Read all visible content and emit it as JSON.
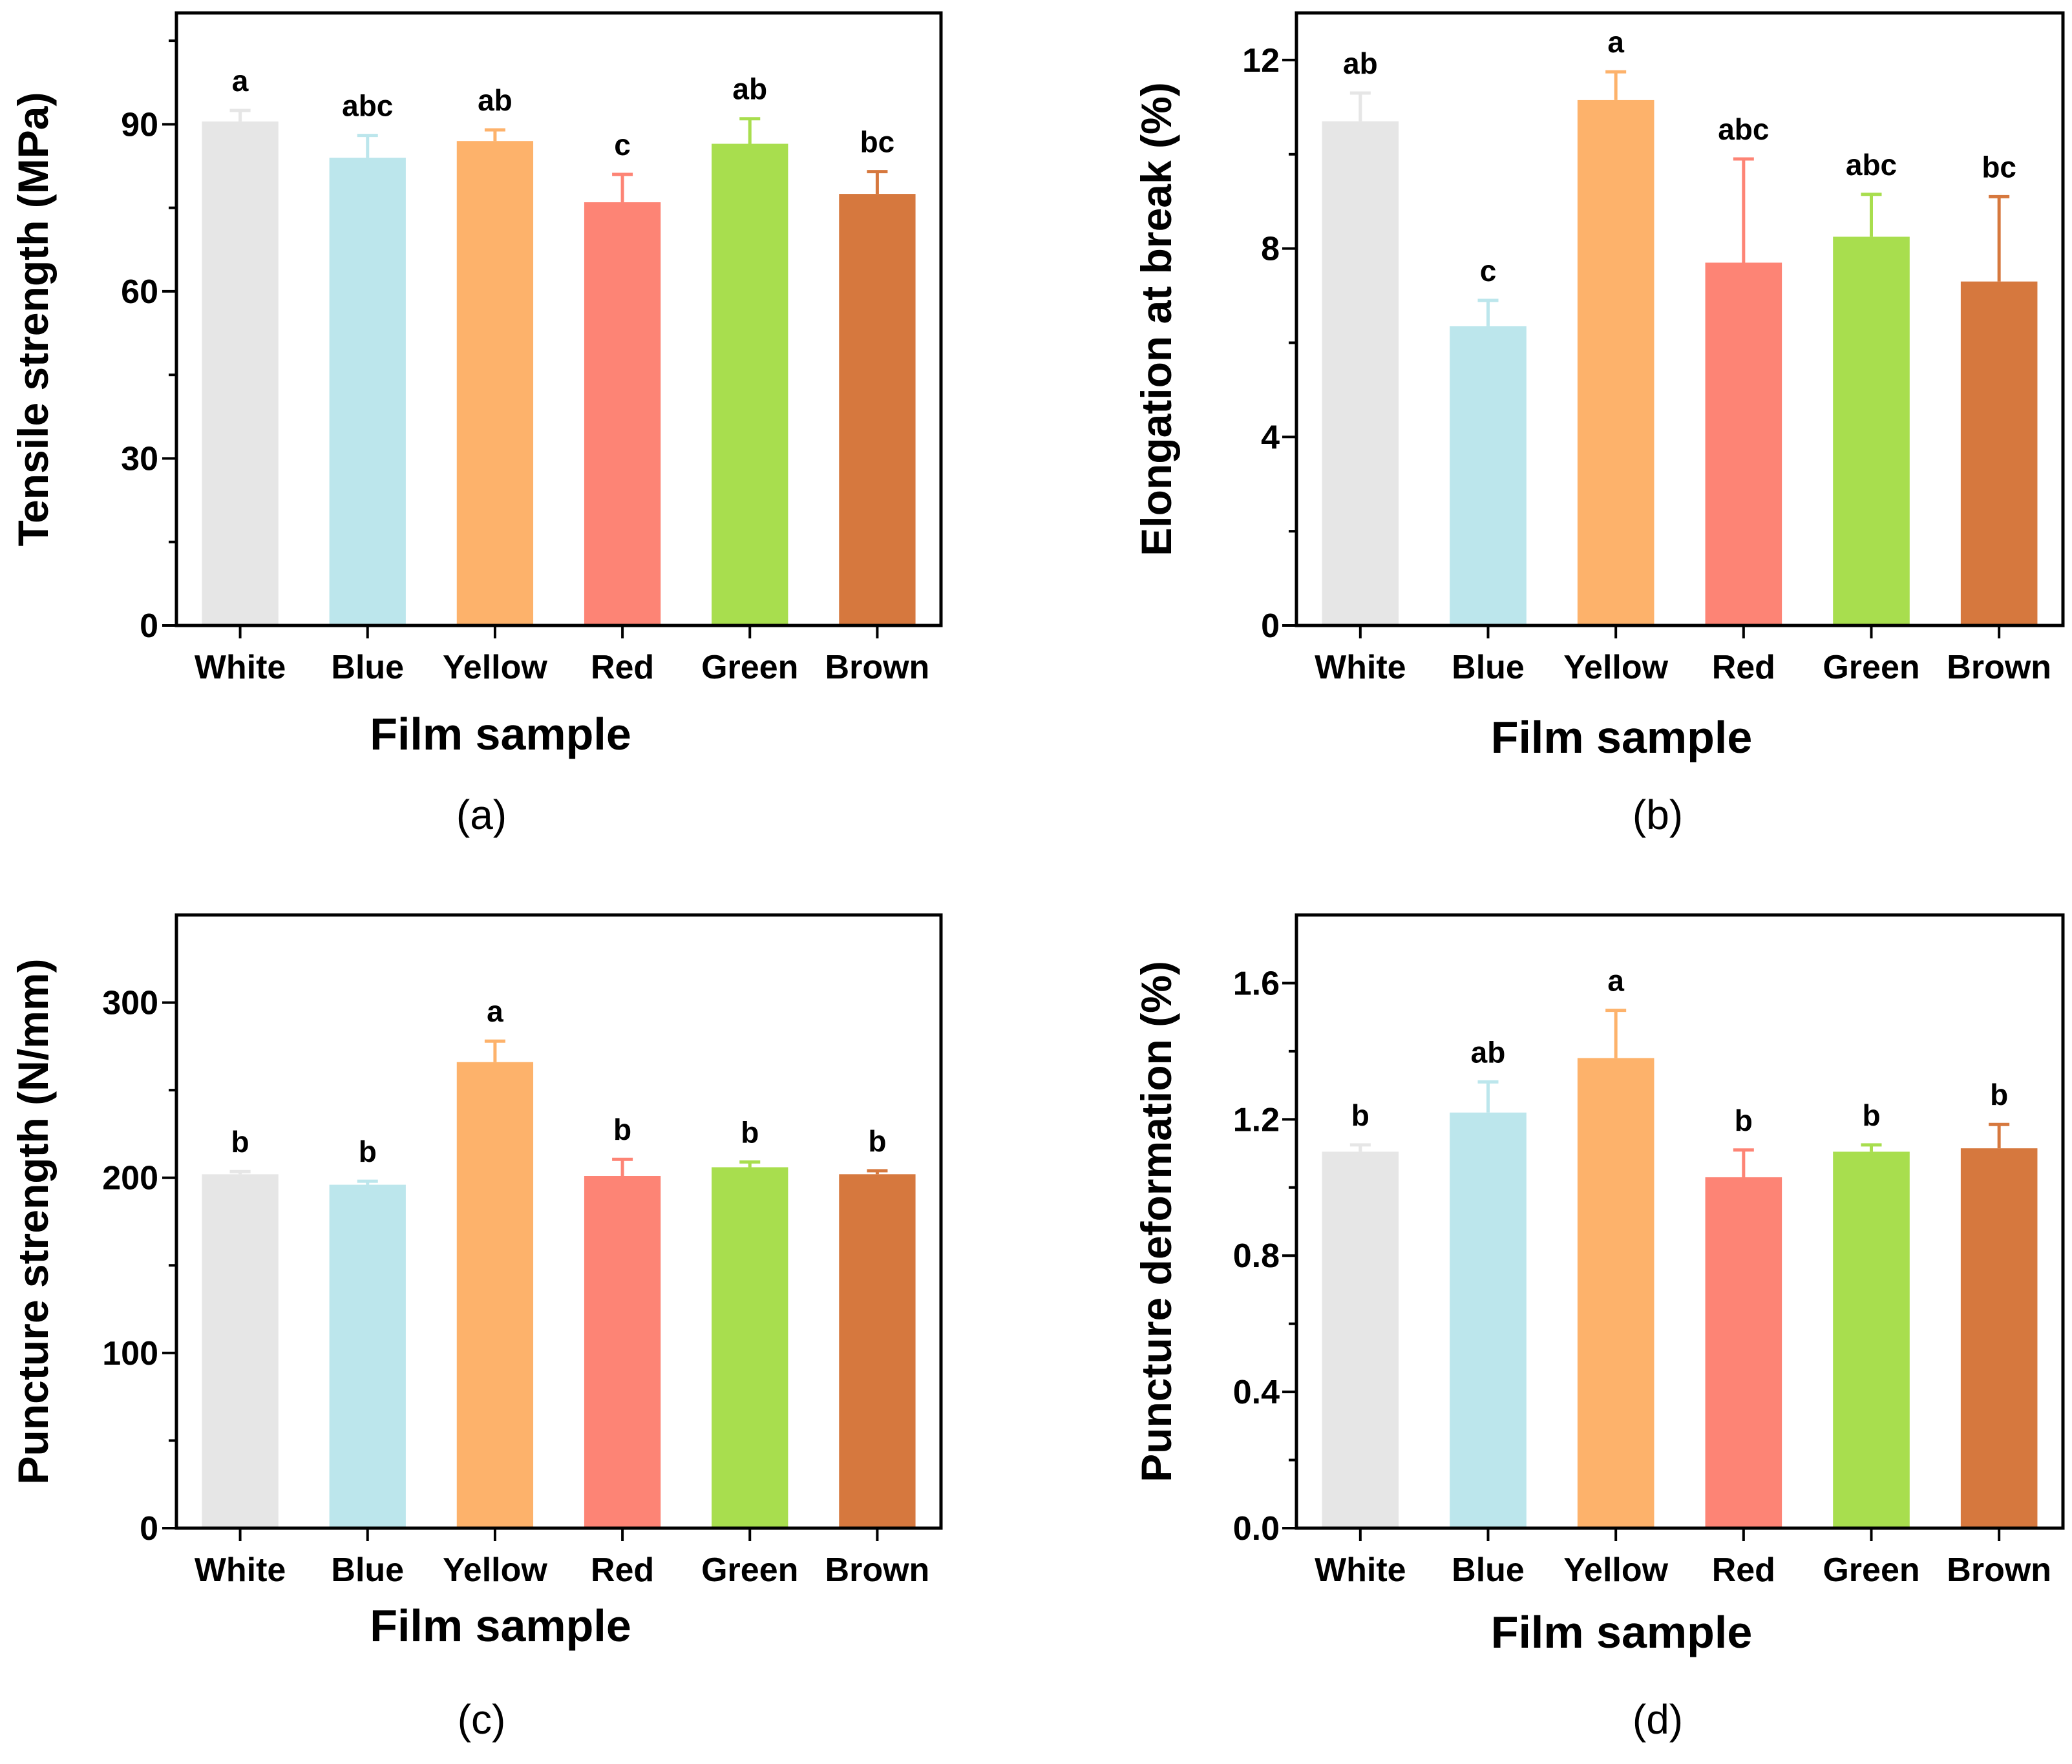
{
  "colors": {
    "White": "#e6e6e6",
    "Blue": "#bce6ec",
    "Yellow": "#fdb26b",
    "Red": "#fd8475",
    "Green": "#a8de4e",
    "Brown": "#d6783e"
  },
  "chart_data": [
    {
      "type": "bar",
      "panel_label": "(a)",
      "categories": [
        "White",
        "Blue",
        "Yellow",
        "Red",
        "Green",
        "Brown"
      ],
      "values": [
        90.5,
        84.0,
        87.0,
        76.0,
        86.5,
        77.5
      ],
      "errors": [
        2.0,
        4.0,
        2.0,
        5.0,
        4.5,
        4.0
      ],
      "letters": [
        "a",
        "abc",
        "ab",
        "c",
        "ab",
        "bc"
      ],
      "yticks": [
        0,
        30,
        60,
        90
      ],
      "ytick_labels": [
        "0",
        "30",
        "60",
        "90"
      ],
      "ylim": [
        0,
        110
      ],
      "ylabel": "Tensile strength (MPa)",
      "xlabel": "Film sample"
    },
    {
      "type": "bar",
      "panel_label": "(b)",
      "categories": [
        "White",
        "Blue",
        "Yellow",
        "Red",
        "Green",
        "Brown"
      ],
      "values": [
        10.7,
        6.35,
        11.15,
        7.7,
        8.25,
        7.3
      ],
      "errors": [
        0.6,
        0.55,
        0.6,
        2.2,
        0.9,
        1.8
      ],
      "letters": [
        "ab",
        "c",
        "a",
        "abc",
        "abc",
        "bc"
      ],
      "yticks": [
        0,
        4,
        8,
        12
      ],
      "ytick_labels": [
        "0",
        "4",
        "8",
        "12"
      ],
      "ylim": [
        0,
        13
      ],
      "ylabel": "Elongation at break (%)",
      "xlabel": "Film sample"
    },
    {
      "type": "bar",
      "panel_label": "(c)",
      "categories": [
        "White",
        "Blue",
        "Yellow",
        "Red",
        "Green",
        "Brown"
      ],
      "values": [
        202,
        196,
        266,
        201,
        206,
        202
      ],
      "errors": [
        1.5,
        2.0,
        12.0,
        9.5,
        3.0,
        2.0
      ],
      "letters": [
        "b",
        "b",
        "a",
        "b",
        "b",
        "b"
      ],
      "yticks": [
        0,
        100,
        200,
        300
      ],
      "ytick_labels": [
        "0",
        "100",
        "200",
        "300"
      ],
      "ylim": [
        0,
        350
      ],
      "ylabel": "Puncture strength (N/mm)",
      "xlabel": "Film sample"
    },
    {
      "type": "bar",
      "panel_label": "(d)",
      "categories": [
        "White",
        "Blue",
        "Yellow",
        "Red",
        "Green",
        "Brown"
      ],
      "values": [
        1.105,
        1.22,
        1.38,
        1.03,
        1.105,
        1.115
      ],
      "errors": [
        0.02,
        0.09,
        0.14,
        0.08,
        0.02,
        0.07
      ],
      "letters": [
        "b",
        "ab",
        "a",
        "b",
        "b",
        "b"
      ],
      "yticks": [
        0.0,
        0.4,
        0.8,
        1.2,
        1.6
      ],
      "ytick_labels": [
        "0.0",
        "0.4",
        "0.8",
        "1.2",
        "1.6"
      ],
      "ylim": [
        0,
        1.8
      ],
      "ylabel": "Puncture deformation (%)",
      "xlabel": "Film sample"
    }
  ]
}
